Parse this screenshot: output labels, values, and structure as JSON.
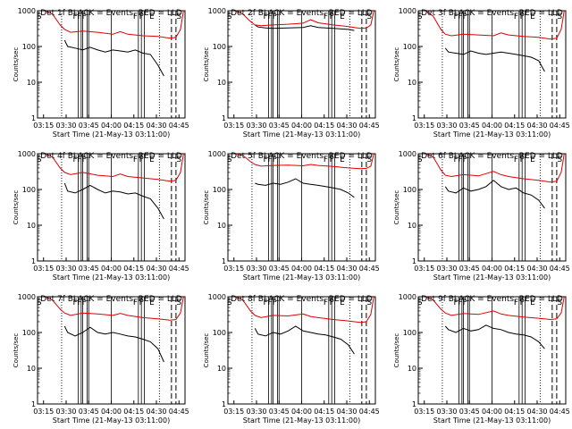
{
  "figure": {
    "ylabel": "Counts/sec",
    "xlabel": "Start Time (21-May-13 03:11:00)",
    "title_suffix": "BLACK = Events, RED = LLD",
    "xticks": [
      "03:15",
      "03:30",
      "03:45",
      "04:00",
      "04:15",
      "04:30",
      "04:45"
    ],
    "yticks": [
      "1",
      "10",
      "100",
      "1000"
    ],
    "marker_letters": [
      "S",
      "F",
      "F",
      "F",
      "F",
      "F",
      "E",
      "S"
    ],
    "colors": {
      "events": "#000000",
      "lld": "#e00000"
    }
  },
  "chart_data": [
    {
      "type": "line",
      "title": "Det 1f BLACK = Events, RED = LLD",
      "xlabel": "Start Time (21-May-13 03:11:00)",
      "ylabel": "Counts/sec",
      "xlim_minutes": [
        0,
        98
      ],
      "ylim": [
        1,
        1000
      ],
      "yscale": "log",
      "series": [
        {
          "name": "Events",
          "color": "#000000",
          "x": [
            18,
            20,
            25,
            30,
            35,
            40,
            45,
            50,
            55,
            60,
            65,
            70,
            75,
            80,
            84
          ],
          "y": [
            150,
            100,
            90,
            80,
            95,
            80,
            70,
            80,
            75,
            70,
            80,
            65,
            60,
            30,
            15
          ]
        },
        {
          "name": "LLD",
          "color": "#e00000",
          "x": [
            5,
            10,
            15,
            18,
            22,
            30,
            40,
            50,
            55,
            60,
            70,
            80,
            88,
            92,
            95,
            97
          ],
          "y": [
            1000,
            800,
            400,
            300,
            250,
            270,
            250,
            220,
            260,
            220,
            200,
            190,
            170,
            180,
            300,
            1000
          ]
        }
      ]
    },
    {
      "type": "line",
      "title": "Det 2f BLACK = Events, RED = LLD",
      "xlabel": "Start Time (21-May-13 03:11:00)",
      "ylabel": "Counts/sec",
      "xlim_minutes": [
        0,
        98
      ],
      "ylim": [
        1,
        1000
      ],
      "yscale": "log",
      "series": [
        {
          "name": "Events",
          "color": "#000000",
          "x": [
            18,
            20,
            25,
            30,
            40,
            50,
            55,
            60,
            70,
            80,
            84
          ],
          "y": [
            400,
            350,
            330,
            320,
            330,
            340,
            380,
            340,
            320,
            300,
            280
          ]
        },
        {
          "name": "LLD",
          "color": "#e00000",
          "x": [
            5,
            10,
            15,
            18,
            22,
            30,
            40,
            50,
            55,
            60,
            70,
            80,
            88,
            92,
            95,
            97
          ],
          "y": [
            1000,
            800,
            500,
            400,
            380,
            400,
            420,
            450,
            560,
            460,
            400,
            360,
            320,
            330,
            400,
            1000
          ]
        }
      ]
    },
    {
      "type": "line",
      "title": "Det 3f BLACK = Events, RED = LLD",
      "xlabel": "Start Time (21-May-13 03:11:00)",
      "ylabel": "Counts/sec",
      "xlim_minutes": [
        0,
        98
      ],
      "ylim": [
        1,
        1000
      ],
      "yscale": "log",
      "series": [
        {
          "name": "Events",
          "color": "#000000",
          "x": [
            18,
            20,
            25,
            30,
            35,
            40,
            45,
            50,
            55,
            60,
            65,
            70,
            75,
            80,
            84
          ],
          "y": [
            90,
            70,
            65,
            60,
            75,
            65,
            60,
            65,
            70,
            65,
            60,
            55,
            50,
            40,
            20
          ]
        },
        {
          "name": "LLD",
          "color": "#e00000",
          "x": [
            5,
            10,
            15,
            18,
            22,
            30,
            40,
            50,
            55,
            60,
            70,
            80,
            88,
            92,
            95,
            97
          ],
          "y": [
            1000,
            700,
            300,
            220,
            200,
            220,
            210,
            200,
            240,
            210,
            190,
            180,
            160,
            170,
            300,
            1000
          ]
        }
      ]
    },
    {
      "type": "line",
      "title": "Det 4f BLACK = Events, RED = LLD",
      "xlabel": "Start Time (21-May-13 03:11:00)",
      "ylabel": "Counts/sec",
      "xlim_minutes": [
        0,
        98
      ],
      "ylim": [
        1,
        1000
      ],
      "yscale": "log",
      "series": [
        {
          "name": "Events",
          "color": "#000000",
          "x": [
            18,
            20,
            25,
            30,
            35,
            40,
            45,
            50,
            55,
            60,
            65,
            70,
            75,
            80,
            84
          ],
          "y": [
            150,
            90,
            80,
            100,
            130,
            100,
            80,
            90,
            85,
            75,
            80,
            65,
            55,
            30,
            15
          ]
        },
        {
          "name": "LLD",
          "color": "#e00000",
          "x": [
            5,
            10,
            15,
            18,
            22,
            30,
            40,
            50,
            55,
            60,
            70,
            80,
            88,
            92,
            95,
            97
          ],
          "y": [
            1000,
            800,
            400,
            300,
            260,
            300,
            250,
            230,
            270,
            230,
            210,
            190,
            170,
            180,
            300,
            1000
          ]
        }
      ]
    },
    {
      "type": "line",
      "title": "Det 5f BLACK = Events, RED = LLD",
      "xlabel": "Start Time (21-May-13 03:11:00)",
      "ylabel": "Counts/sec",
      "xlim_minutes": [
        0,
        98
      ],
      "ylim": [
        1,
        1000
      ],
      "yscale": "log",
      "series": [
        {
          "name": "Events",
          "color": "#000000",
          "x": [
            18,
            20,
            25,
            30,
            35,
            40,
            45,
            50,
            55,
            60,
            65,
            70,
            75,
            80,
            84
          ],
          "y": [
            150,
            140,
            130,
            150,
            140,
            160,
            200,
            150,
            140,
            130,
            120,
            110,
            100,
            80,
            60
          ]
        },
        {
          "name": "LLD",
          "color": "#e00000",
          "x": [
            5,
            10,
            15,
            18,
            22,
            30,
            40,
            50,
            55,
            60,
            70,
            80,
            88,
            92,
            95,
            97
          ],
          "y": [
            1000,
            900,
            600,
            500,
            450,
            470,
            480,
            460,
            500,
            470,
            440,
            400,
            380,
            390,
            450,
            1000
          ]
        }
      ]
    },
    {
      "type": "line",
      "title": "Det 6f BLACK = Events, RED = LLD",
      "xlabel": "Start Time (21-May-13 03:11:00)",
      "ylabel": "Counts/sec",
      "xlim_minutes": [
        0,
        98
      ],
      "ylim": [
        1,
        1000
      ],
      "yscale": "log",
      "series": [
        {
          "name": "Events",
          "color": "#000000",
          "x": [
            18,
            20,
            25,
            30,
            35,
            40,
            45,
            50,
            55,
            60,
            65,
            70,
            75,
            80,
            84
          ],
          "y": [
            120,
            90,
            80,
            110,
            90,
            100,
            120,
            180,
            120,
            100,
            110,
            80,
            70,
            50,
            30
          ]
        },
        {
          "name": "LLD",
          "color": "#e00000",
          "x": [
            5,
            10,
            15,
            18,
            22,
            30,
            40,
            50,
            55,
            60,
            70,
            80,
            88,
            92,
            95,
            97
          ],
          "y": [
            1000,
            800,
            350,
            250,
            230,
            260,
            240,
            320,
            260,
            230,
            200,
            180,
            160,
            170,
            300,
            1000
          ]
        }
      ]
    },
    {
      "type": "line",
      "title": "Det 7f BLACK = Events, RED = LLD",
      "xlabel": "Start Time (21-May-13 03:11:00)",
      "ylabel": "Counts/sec",
      "xlim_minutes": [
        0,
        98
      ],
      "ylim": [
        1,
        1000
      ],
      "yscale": "log",
      "series": [
        {
          "name": "Events",
          "color": "#000000",
          "x": [
            18,
            20,
            25,
            30,
            35,
            40,
            45,
            50,
            55,
            60,
            65,
            70,
            75,
            80,
            84
          ],
          "y": [
            150,
            100,
            80,
            100,
            140,
            100,
            90,
            100,
            90,
            80,
            75,
            65,
            55,
            35,
            15
          ]
        },
        {
          "name": "LLD",
          "color": "#e00000",
          "x": [
            5,
            10,
            15,
            18,
            22,
            30,
            40,
            50,
            55,
            60,
            70,
            80,
            88,
            92,
            95,
            97
          ],
          "y": [
            1000,
            800,
            450,
            350,
            300,
            350,
            330,
            300,
            340,
            300,
            260,
            240,
            220,
            230,
            350,
            1000
          ]
        }
      ]
    },
    {
      "type": "line",
      "title": "Det 8f BLACK = Events, RED = LLD",
      "xlabel": "Start Time (21-May-13 03:11:00)",
      "ylabel": "Counts/sec",
      "xlim_minutes": [
        0,
        98
      ],
      "ylim": [
        1,
        1000
      ],
      "yscale": "log",
      "series": [
        {
          "name": "Events",
          "color": "#000000",
          "x": [
            18,
            20,
            25,
            30,
            35,
            40,
            45,
            50,
            55,
            60,
            65,
            70,
            75,
            80,
            84
          ],
          "y": [
            130,
            90,
            80,
            100,
            90,
            110,
            150,
            110,
            100,
            90,
            85,
            75,
            65,
            45,
            25
          ]
        },
        {
          "name": "LLD",
          "color": "#e00000",
          "x": [
            5,
            10,
            15,
            18,
            22,
            30,
            40,
            50,
            55,
            60,
            70,
            80,
            88,
            92,
            95,
            97
          ],
          "y": [
            1000,
            800,
            400,
            300,
            260,
            300,
            290,
            330,
            280,
            260,
            230,
            210,
            190,
            200,
            320,
            1000
          ]
        }
      ]
    },
    {
      "type": "line",
      "title": "Det 9f BLACK = Events, RED = LLD",
      "xlabel": "Start Time (21-May-13 03:11:00)",
      "ylabel": "Counts/sec",
      "xlim_minutes": [
        0,
        98
      ],
      "ylim": [
        1,
        1000
      ],
      "yscale": "log",
      "series": [
        {
          "name": "Events",
          "color": "#000000",
          "x": [
            18,
            20,
            25,
            30,
            35,
            40,
            45,
            50,
            55,
            60,
            65,
            70,
            75,
            80,
            84
          ],
          "y": [
            150,
            120,
            100,
            130,
            110,
            120,
            160,
            130,
            120,
            100,
            90,
            85,
            75,
            55,
            35
          ]
        },
        {
          "name": "LLD",
          "color": "#e00000",
          "x": [
            5,
            10,
            15,
            18,
            22,
            30,
            40,
            50,
            55,
            60,
            70,
            80,
            88,
            92,
            95,
            97
          ],
          "y": [
            1000,
            800,
            450,
            350,
            300,
            340,
            320,
            400,
            330,
            300,
            270,
            250,
            230,
            240,
            350,
            1000
          ]
        }
      ]
    }
  ]
}
